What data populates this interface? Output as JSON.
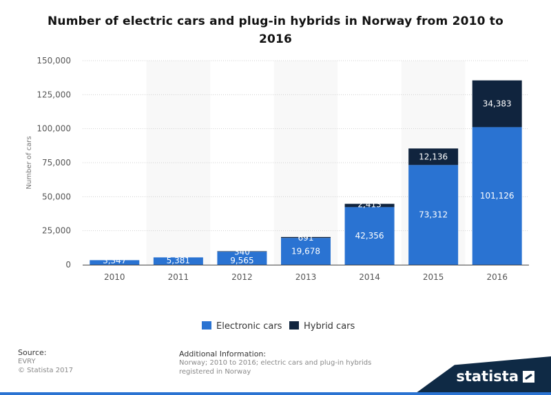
{
  "title": "Number of electric cars and plug-in hybrids in Norway from 2010 to 2016",
  "chart_data": {
    "type": "bar",
    "stacked": true,
    "categories": [
      "2010",
      "2011",
      "2012",
      "2013",
      "2014",
      "2015",
      "2016"
    ],
    "series": [
      {
        "name": "Electronic cars",
        "color": "#2a73d2",
        "values": [
          3347,
          5381,
          9565,
          19678,
          42356,
          73312,
          101126
        ]
      },
      {
        "name": "Hybrid cars",
        "color": "#10243e",
        "values": [
          null,
          null,
          340,
          691,
          2413,
          12136,
          34383
        ]
      }
    ],
    "data_labels": [
      [
        "3,347",
        "5,381",
        "9,565",
        "19,678",
        "42,356",
        "73,312",
        "101,126"
      ],
      [
        "",
        "",
        "340",
        "691",
        "2,413",
        "12,136",
        "34,383"
      ]
    ],
    "xlabel": "",
    "ylabel": "Number of cars",
    "ylim": [
      0,
      150000
    ],
    "yticks": [
      0,
      25000,
      50000,
      75000,
      100000,
      125000,
      150000
    ],
    "ytick_labels": [
      "0",
      "25,000",
      "50,000",
      "75,000",
      "100,000",
      "125,000",
      "150,000"
    ],
    "grid": true,
    "legend_position": "bottom-center"
  },
  "footer": {
    "source_title": "Source:",
    "source_name": "EVRY",
    "copyright": "© Statista 2017",
    "info_title": "Additional Information:",
    "info_text": "Norway; 2010 to 2016; electric cars and plug-in hybrids registered in Norway"
  },
  "brand": {
    "name": "statista"
  }
}
